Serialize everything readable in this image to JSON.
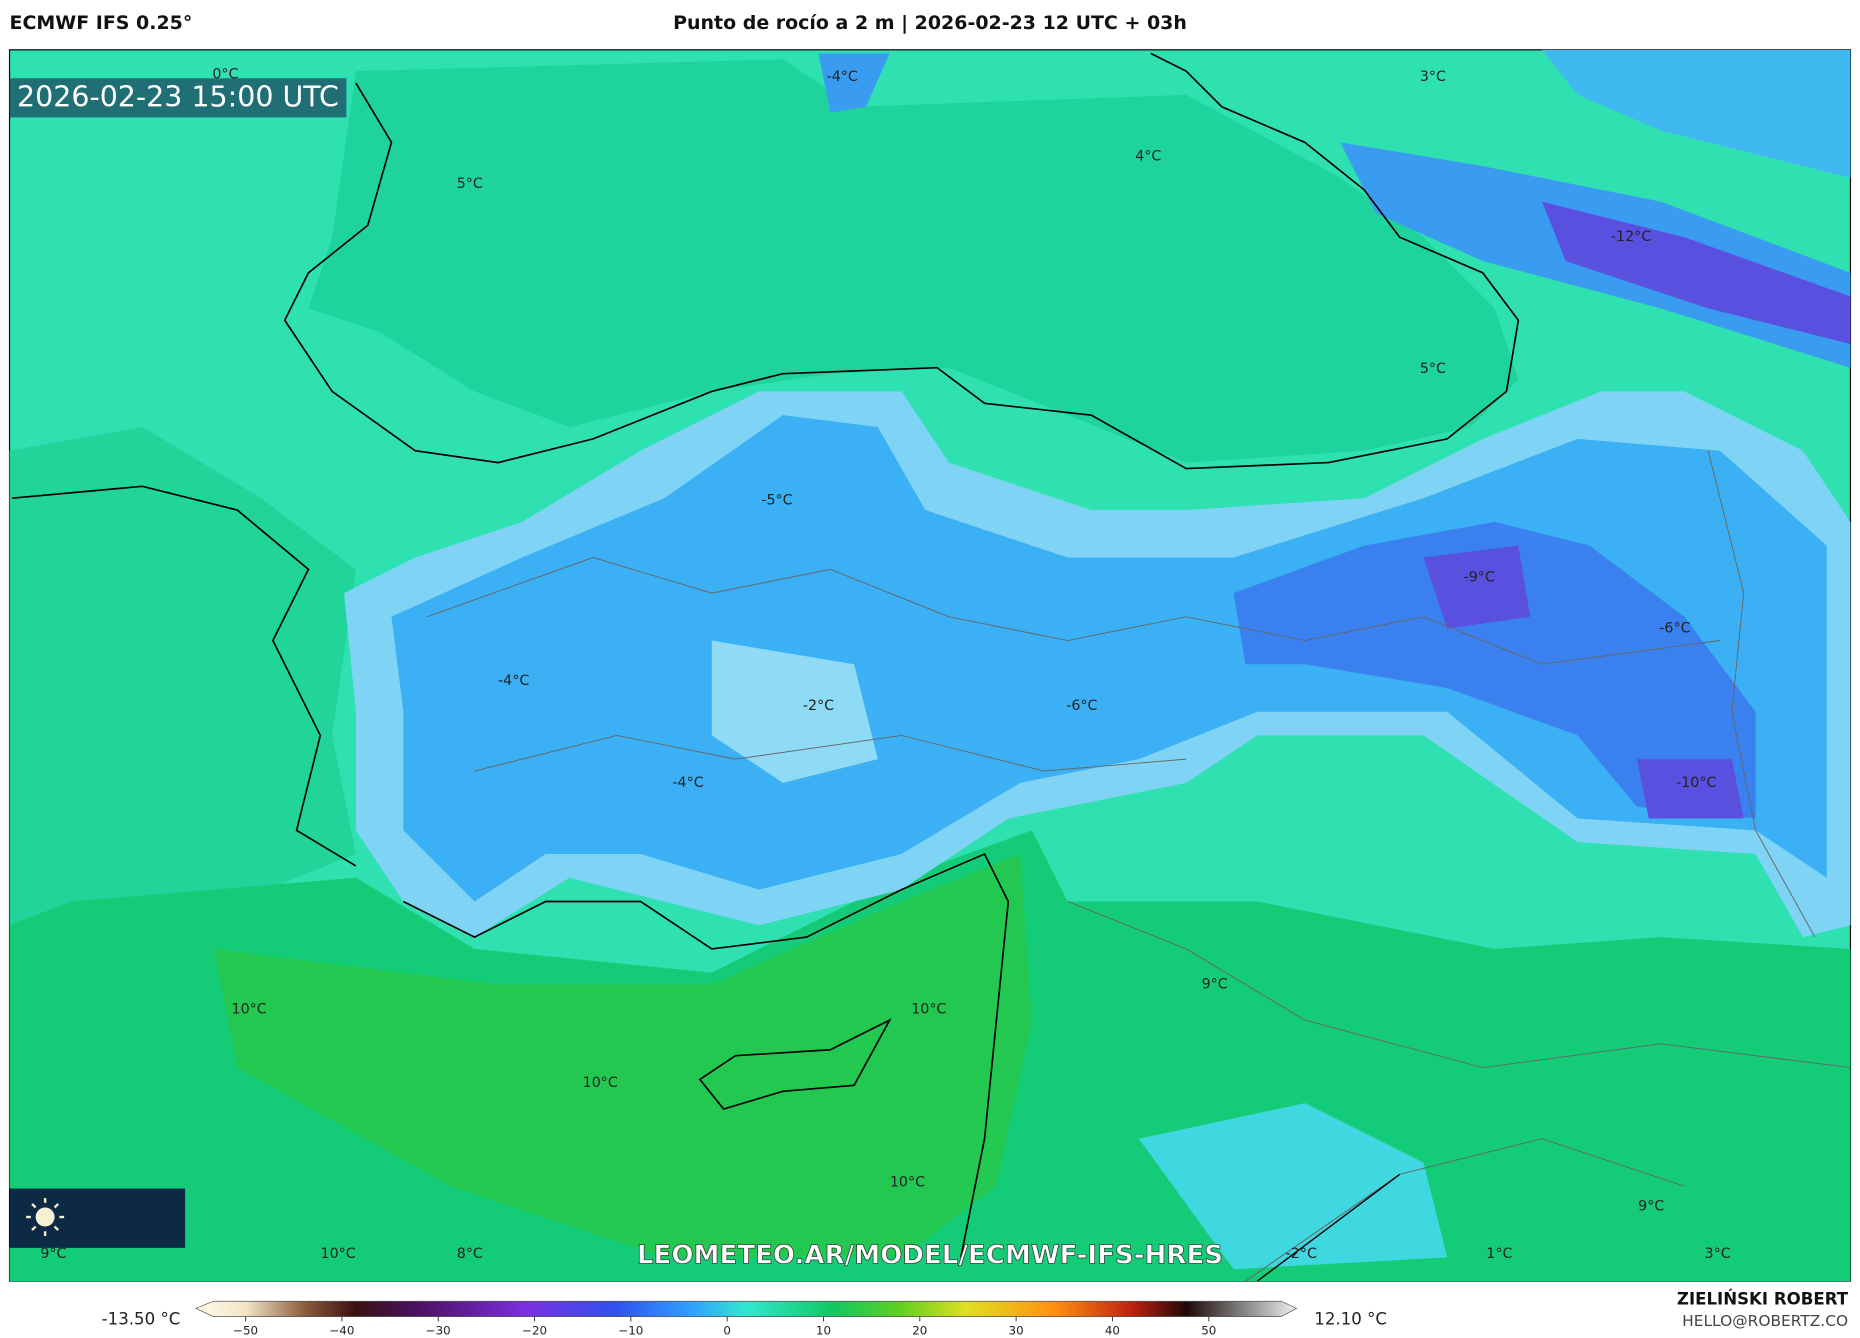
{
  "header": {
    "left": "ECMWF IFS 0.25°",
    "title": "Punto de rocío a 2 m | 2026-02-23 12 UTC + 03h"
  },
  "map": {
    "timestamp": "2026-02-23 15:00 UTC",
    "watermark": "LEOMETEO.AR/MODEL/ECMWF-IFS-HRES",
    "contour_labels": [
      "0°C",
      "-4°C",
      "3°C",
      "4°C",
      "5°C",
      "-12°C",
      "5°C",
      "-5°C",
      "-9°C",
      "-6°C",
      "-4°C",
      "-2°C",
      "-6°C",
      "-4°C",
      "-10°C",
      "9°C",
      "10°C",
      "10°C",
      "10°C",
      "10°C",
      "9°C",
      "9°C",
      "10°C",
      "8°C",
      "-2°C",
      "1°C",
      "3°C"
    ]
  },
  "colorbar": {
    "min_label": "-13.50 °C",
    "max_label": "12.10 °C",
    "ticks": [
      "−50",
      "−40",
      "−30",
      "−20",
      "−10",
      "0",
      "10",
      "20",
      "30",
      "40",
      "50"
    ]
  },
  "credit": {
    "name": "ZIELIŃSKI ROBERT",
    "email": "HELLO@ROBERTZ.CO"
  }
}
